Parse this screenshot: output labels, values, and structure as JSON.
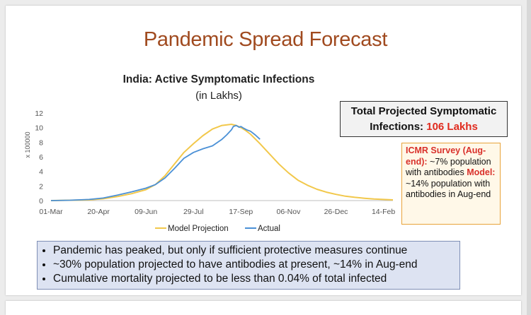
{
  "slide": {
    "title": "Pandemic Spread Forecast",
    "total_box": {
      "label": "Total Projected Symptomatic Infections:",
      "value": "106 Lakhs"
    },
    "icmr_box": {
      "survey_label": "ICMR Survey (Aug-end):",
      "survey_text": "~7% population with antibodies",
      "model_label": "Model:",
      "model_text": "~14% population with antibodies in Aug-end"
    },
    "bullets": [
      "Pandemic has peaked, but only if sufficient protective measures continue",
      "~30% population projected to have antibodies at present, ~14% in Aug-end",
      "Cumulative mortality projected to be less than 0.04% of total infected"
    ]
  },
  "chart_data": {
    "type": "line",
    "title": "India: Active Symptomatic Infections",
    "subtitle": "(in Lakhs)",
    "ylabel": "x 100000",
    "ylim": [
      0,
      12
    ],
    "yticks": [
      "0",
      "2",
      "4",
      "6",
      "8",
      "10",
      "12"
    ],
    "xlim": [
      0,
      360
    ],
    "xticks": [
      {
        "label": "01-Mar",
        "day": 0
      },
      {
        "label": "20-Apr",
        "day": 50
      },
      {
        "label": "09-Jun",
        "day": 100
      },
      {
        "label": "29-Jul",
        "day": 150
      },
      {
        "label": "17-Sep",
        "day": 200
      },
      {
        "label": "06-Nov",
        "day": 250
      },
      {
        "label": "26-Dec",
        "day": 300
      },
      {
        "label": "14-Feb",
        "day": 350
      }
    ],
    "legend_position": "bottom",
    "series": [
      {
        "name": "Model Projection",
        "color": "#f2c84b",
        "x": [
          0,
          20,
          40,
          55,
          70,
          85,
          100,
          110,
          120,
          130,
          140,
          150,
          160,
          170,
          180,
          190,
          195,
          200,
          205,
          210,
          220,
          230,
          240,
          250,
          260,
          270,
          280,
          290,
          300,
          310,
          320,
          330,
          340,
          350,
          360
        ],
        "y": [
          0,
          0.05,
          0.1,
          0.25,
          0.55,
          0.95,
          1.5,
          2.2,
          3.4,
          5.0,
          6.6,
          7.8,
          8.9,
          9.8,
          10.3,
          10.45,
          10.3,
          10.0,
          9.6,
          9.1,
          7.8,
          6.4,
          5.0,
          3.8,
          2.8,
          2.1,
          1.55,
          1.15,
          0.85,
          0.6,
          0.45,
          0.32,
          0.22,
          0.15,
          0.1
        ]
      },
      {
        "name": "Actual",
        "color": "#4a90d6",
        "x": [
          0,
          20,
          40,
          55,
          70,
          85,
          100,
          110,
          120,
          130,
          140,
          150,
          160,
          170,
          180,
          185,
          190,
          192,
          195,
          198,
          200,
          203,
          206,
          210,
          215,
          220
        ],
        "y": [
          0,
          0.05,
          0.15,
          0.35,
          0.75,
          1.2,
          1.7,
          2.2,
          3.1,
          4.4,
          5.8,
          6.6,
          7.1,
          7.5,
          8.4,
          9.0,
          9.7,
          10.15,
          10.3,
          10.05,
          10.15,
          9.9,
          9.7,
          9.5,
          9.0,
          8.4
        ]
      }
    ]
  }
}
